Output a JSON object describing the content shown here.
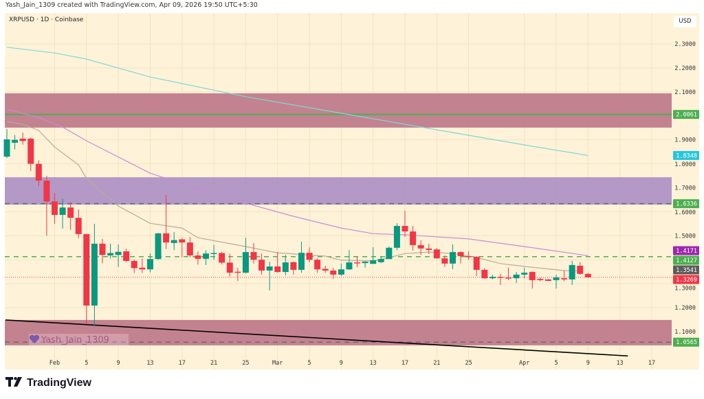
{
  "credit": "Yash_Jain_1309 created with TradingView.com, Apr 09, 2026 19:50 UTC+5:30",
  "symbol": "XRPUSD · 1D · Coinbase",
  "currency": "USD",
  "watermark": "Yash_Jain_1309",
  "footer": {
    "brand": "TradingView"
  },
  "colors": {
    "background": "#fef2d8",
    "up": "#089981",
    "down": "#f23645",
    "supply_zone": "#c07b8c",
    "purple_zone": "#b092c4",
    "ma_cyan": "#7dd8d8",
    "ma_purple": "#c98ad6",
    "ma_grey": "#b8ab9a",
    "trendline": "#000000"
  },
  "chart_data": {
    "type": "candlestick",
    "title": "XRPUSD · 1D · Coinbase",
    "ylim": [
      1.0,
      2.35
    ],
    "y_ticks": [
      "2.3000",
      "2.2000",
      "2.1000",
      "1.9000",
      "1.8000",
      "1.7000",
      "1.6000",
      "1.5000",
      "1.3000",
      "1.2000",
      "1.1000"
    ],
    "x_ticks": [
      {
        "date": "2026-02-01",
        "label": "Feb"
      },
      {
        "date": "2026-02-05",
        "label": "5"
      },
      {
        "date": "2026-02-09",
        "label": "9"
      },
      {
        "date": "2026-02-13",
        "label": "13"
      },
      {
        "date": "2026-02-17",
        "label": "17"
      },
      {
        "date": "2026-02-21",
        "label": "21"
      },
      {
        "date": "2026-02-25",
        "label": "25"
      },
      {
        "date": "2026-03-01",
        "label": "Mar"
      },
      {
        "date": "2026-03-05",
        "label": "5"
      },
      {
        "date": "2026-03-09",
        "label": "9"
      },
      {
        "date": "2026-03-13",
        "label": "13"
      },
      {
        "date": "2026-03-17",
        "label": "17"
      },
      {
        "date": "2026-03-21",
        "label": "21"
      },
      {
        "date": "2026-03-25",
        "label": "25"
      },
      {
        "date": "2026-04-01",
        "label": "Apr"
      },
      {
        "date": "2026-04-05",
        "label": "5"
      },
      {
        "date": "2026-04-09",
        "label": "9"
      },
      {
        "date": "2026-04-13",
        "label": "13"
      },
      {
        "date": "2026-04-17",
        "label": "17"
      }
    ],
    "grid": true,
    "candles": [
      {
        "d": "2026-01-26",
        "o": 1.83,
        "h": 1.945,
        "l": 1.825,
        "c": 1.902
      },
      {
        "d": "2026-01-27",
        "o": 1.888,
        "h": 1.92,
        "l": 1.86,
        "c": 1.9
      },
      {
        "d": "2026-01-28",
        "o": 1.905,
        "h": 1.93,
        "l": 1.88,
        "c": 1.895
      },
      {
        "d": "2026-01-29",
        "o": 1.905,
        "h": 1.91,
        "l": 1.77,
        "c": 1.8
      },
      {
        "d": "2026-01-30",
        "o": 1.8,
        "h": 1.815,
        "l": 1.707,
        "c": 1.73
      },
      {
        "d": "2026-01-31",
        "o": 1.73,
        "h": 1.75,
        "l": 1.5,
        "c": 1.643
      },
      {
        "d": "2026-02-01",
        "o": 1.643,
        "h": 1.678,
        "l": 1.55,
        "c": 1.587
      },
      {
        "d": "2026-02-02",
        "o": 1.587,
        "h": 1.655,
        "l": 1.53,
        "c": 1.618
      },
      {
        "d": "2026-02-03",
        "o": 1.618,
        "h": 1.64,
        "l": 1.524,
        "c": 1.575
      },
      {
        "d": "2026-02-04",
        "o": 1.575,
        "h": 1.61,
        "l": 1.49,
        "c": 1.507
      },
      {
        "d": "2026-02-05",
        "o": 1.507,
        "h": 1.507,
        "l": 1.134,
        "c": 1.209
      },
      {
        "d": "2026-02-06",
        "o": 1.209,
        "h": 1.55,
        "l": 1.12,
        "c": 1.467
      },
      {
        "d": "2026-02-07",
        "o": 1.467,
        "h": 1.487,
        "l": 1.385,
        "c": 1.42
      },
      {
        "d": "2026-02-08",
        "o": 1.418,
        "h": 1.467,
        "l": 1.405,
        "c": 1.428
      },
      {
        "d": "2026-02-09",
        "o": 1.42,
        "h": 1.464,
        "l": 1.37,
        "c": 1.433
      },
      {
        "d": "2026-02-10",
        "o": 1.435,
        "h": 1.446,
        "l": 1.39,
        "c": 1.395
      },
      {
        "d": "2026-02-11",
        "o": 1.395,
        "h": 1.4,
        "l": 1.345,
        "c": 1.365
      },
      {
        "d": "2026-02-12",
        "o": 1.367,
        "h": 1.405,
        "l": 1.345,
        "c": 1.36
      },
      {
        "d": "2026-02-13",
        "o": 1.36,
        "h": 1.426,
        "l": 1.347,
        "c": 1.403
      },
      {
        "d": "2026-02-14",
        "o": 1.403,
        "h": 1.512,
        "l": 1.4,
        "c": 1.51
      },
      {
        "d": "2026-02-15",
        "o": 1.51,
        "h": 1.67,
        "l": 1.445,
        "c": 1.472
      },
      {
        "d": "2026-02-16",
        "o": 1.47,
        "h": 1.515,
        "l": 1.44,
        "c": 1.482
      },
      {
        "d": "2026-02-17",
        "o": 1.485,
        "h": 1.49,
        "l": 1.41,
        "c": 1.472
      },
      {
        "d": "2026-02-18",
        "o": 1.472,
        "h": 1.495,
        "l": 1.41,
        "c": 1.418
      },
      {
        "d": "2026-02-19",
        "o": 1.418,
        "h": 1.435,
        "l": 1.38,
        "c": 1.404
      },
      {
        "d": "2026-02-20",
        "o": 1.404,
        "h": 1.44,
        "l": 1.378,
        "c": 1.426
      },
      {
        "d": "2026-02-21",
        "o": 1.425,
        "h": 1.462,
        "l": 1.4,
        "c": 1.428
      },
      {
        "d": "2026-02-22",
        "o": 1.428,
        "h": 1.433,
        "l": 1.38,
        "c": 1.388
      },
      {
        "d": "2026-02-23",
        "o": 1.388,
        "h": 1.425,
        "l": 1.33,
        "c": 1.346
      },
      {
        "d": "2026-02-24",
        "o": 1.35,
        "h": 1.366,
        "l": 1.312,
        "c": 1.346
      },
      {
        "d": "2026-02-25",
        "o": 1.346,
        "h": 1.492,
        "l": 1.343,
        "c": 1.432
      },
      {
        "d": "2026-02-26",
        "o": 1.432,
        "h": 1.47,
        "l": 1.384,
        "c": 1.4
      },
      {
        "d": "2026-02-27",
        "o": 1.4,
        "h": 1.426,
        "l": 1.338,
        "c": 1.355
      },
      {
        "d": "2026-02-28",
        "o": 1.355,
        "h": 1.392,
        "l": 1.272,
        "c": 1.372
      },
      {
        "d": "2026-03-01",
        "o": 1.372,
        "h": 1.432,
        "l": 1.346,
        "c": 1.349
      },
      {
        "d": "2026-03-02",
        "o": 1.349,
        "h": 1.42,
        "l": 1.335,
        "c": 1.389
      },
      {
        "d": "2026-03-03",
        "o": 1.39,
        "h": 1.392,
        "l": 1.338,
        "c": 1.358
      },
      {
        "d": "2026-03-04",
        "o": 1.358,
        "h": 1.475,
        "l": 1.346,
        "c": 1.429
      },
      {
        "d": "2026-03-05",
        "o": 1.429,
        "h": 1.452,
        "l": 1.389,
        "c": 1.4
      },
      {
        "d": "2026-03-06",
        "o": 1.4,
        "h": 1.406,
        "l": 1.346,
        "c": 1.36
      },
      {
        "d": "2026-03-07",
        "o": 1.362,
        "h": 1.375,
        "l": 1.346,
        "c": 1.355
      },
      {
        "d": "2026-03-08",
        "o": 1.355,
        "h": 1.366,
        "l": 1.32,
        "c": 1.338
      },
      {
        "d": "2026-03-09",
        "o": 1.338,
        "h": 1.384,
        "l": 1.332,
        "c": 1.36
      },
      {
        "d": "2026-03-10",
        "o": 1.36,
        "h": 1.44,
        "l": 1.358,
        "c": 1.389
      },
      {
        "d": "2026-03-11",
        "o": 1.389,
        "h": 1.412,
        "l": 1.369,
        "c": 1.386
      },
      {
        "d": "2026-03-12",
        "o": 1.386,
        "h": 1.395,
        "l": 1.367,
        "c": 1.392
      },
      {
        "d": "2026-03-13",
        "o": 1.383,
        "h": 1.452,
        "l": 1.383,
        "c": 1.398
      },
      {
        "d": "2026-03-14",
        "o": 1.39,
        "h": 1.415,
        "l": 1.386,
        "c": 1.403
      },
      {
        "d": "2026-03-15",
        "o": 1.403,
        "h": 1.456,
        "l": 1.403,
        "c": 1.45
      },
      {
        "d": "2026-03-16",
        "o": 1.45,
        "h": 1.552,
        "l": 1.44,
        "c": 1.541
      },
      {
        "d": "2026-03-17",
        "o": 1.541,
        "h": 1.604,
        "l": 1.495,
        "c": 1.518
      },
      {
        "d": "2026-03-18",
        "o": 1.518,
        "h": 1.541,
        "l": 1.438,
        "c": 1.461
      },
      {
        "d": "2026-03-19",
        "o": 1.461,
        "h": 1.481,
        "l": 1.42,
        "c": 1.447
      },
      {
        "d": "2026-03-20",
        "o": 1.447,
        "h": 1.467,
        "l": 1.424,
        "c": 1.441
      },
      {
        "d": "2026-03-21",
        "o": 1.443,
        "h": 1.449,
        "l": 1.404,
        "c": 1.406
      },
      {
        "d": "2026-03-22",
        "o": 1.406,
        "h": 1.418,
        "l": 1.37,
        "c": 1.384
      },
      {
        "d": "2026-03-23",
        "o": 1.384,
        "h": 1.464,
        "l": 1.361,
        "c": 1.432
      },
      {
        "d": "2026-03-24",
        "o": 1.432,
        "h": 1.435,
        "l": 1.384,
        "c": 1.415
      },
      {
        "d": "2026-03-25",
        "o": 1.415,
        "h": 1.435,
        "l": 1.4,
        "c": 1.412
      },
      {
        "d": "2026-03-26",
        "o": 1.412,
        "h": 1.415,
        "l": 1.332,
        "c": 1.358
      },
      {
        "d": "2026-03-27",
        "o": 1.358,
        "h": 1.366,
        "l": 1.32,
        "c": 1.323
      },
      {
        "d": "2026-03-28",
        "o": 1.323,
        "h": 1.338,
        "l": 1.318,
        "c": 1.329
      },
      {
        "d": "2026-03-29",
        "o": 1.329,
        "h": 1.341,
        "l": 1.295,
        "c": 1.326
      },
      {
        "d": "2026-03-30",
        "o": 1.326,
        "h": 1.367,
        "l": 1.315,
        "c": 1.323
      },
      {
        "d": "2026-03-31",
        "o": 1.323,
        "h": 1.349,
        "l": 1.303,
        "c": 1.338
      },
      {
        "d": "2026-04-01",
        "o": 1.338,
        "h": 1.366,
        "l": 1.323,
        "c": 1.346
      },
      {
        "d": "2026-04-02",
        "o": 1.349,
        "h": 1.352,
        "l": 1.28,
        "c": 1.315
      },
      {
        "d": "2026-04-03",
        "o": 1.32,
        "h": 1.326,
        "l": 1.31,
        "c": 1.315
      },
      {
        "d": "2026-04-04",
        "o": 1.318,
        "h": 1.32,
        "l": 1.312,
        "c": 1.312
      },
      {
        "d": "2026-04-05",
        "o": 1.315,
        "h": 1.338,
        "l": 1.28,
        "c": 1.326
      },
      {
        "d": "2026-04-06",
        "o": 1.323,
        "h": 1.355,
        "l": 1.31,
        "c": 1.318
      },
      {
        "d": "2026-04-07",
        "o": 1.318,
        "h": 1.395,
        "l": 1.295,
        "c": 1.378
      },
      {
        "d": "2026-04-08",
        "o": 1.375,
        "h": 1.39,
        "l": 1.338,
        "c": 1.341
      },
      {
        "d": "2026-04-09",
        "o": 1.341,
        "h": 1.345,
        "l": 1.325,
        "c": 1.3269
      }
    ],
    "moving_averages": [
      {
        "color": "#7dd8d8",
        "points": [
          [
            "2026-01-26",
            2.286
          ],
          [
            "2026-02-01",
            2.262
          ],
          [
            "2026-02-05",
            2.237
          ],
          [
            "2026-02-13",
            2.162
          ],
          [
            "2026-02-25",
            2.08
          ],
          [
            "2026-03-09",
            2.011
          ],
          [
            "2026-03-21",
            1.942
          ],
          [
            "2026-04-01",
            1.879
          ],
          [
            "2026-04-09",
            1.8348
          ]
        ]
      },
      {
        "color": "#c98ad6",
        "points": [
          [
            "2026-01-26",
            2.028
          ],
          [
            "2026-01-30",
            1.993
          ],
          [
            "2026-02-02",
            1.953
          ],
          [
            "2026-02-05",
            1.896
          ],
          [
            "2026-02-13",
            1.761
          ],
          [
            "2026-02-19",
            1.696
          ],
          [
            "2026-02-25",
            1.636
          ],
          [
            "2026-03-03",
            1.581
          ],
          [
            "2026-03-09",
            1.532
          ],
          [
            "2026-03-13",
            1.509
          ],
          [
            "2026-03-17",
            1.504
          ],
          [
            "2026-03-25",
            1.487
          ],
          [
            "2026-04-01",
            1.455
          ],
          [
            "2026-04-09",
            1.4171
          ]
        ]
      },
      {
        "color": "#b8ab9a",
        "points": [
          [
            "2026-01-26",
            1.976
          ],
          [
            "2026-01-28",
            1.965
          ],
          [
            "2026-01-30",
            1.939
          ],
          [
            "2026-02-01",
            1.87
          ],
          [
            "2026-02-04",
            1.796
          ],
          [
            "2026-02-05",
            1.739
          ],
          [
            "2026-02-09",
            1.624
          ],
          [
            "2026-02-13",
            1.552
          ],
          [
            "2026-02-17",
            1.532
          ],
          [
            "2026-02-19",
            1.492
          ],
          [
            "2026-02-24",
            1.461
          ],
          [
            "2026-03-01",
            1.429
          ],
          [
            "2026-03-07",
            1.415
          ],
          [
            "2026-03-09",
            1.398
          ],
          [
            "2026-03-13",
            1.395
          ],
          [
            "2026-03-15",
            1.409
          ],
          [
            "2026-03-17",
            1.426
          ],
          [
            "2026-03-20",
            1.432
          ],
          [
            "2026-03-23",
            1.426
          ],
          [
            "2026-03-26",
            1.409
          ],
          [
            "2026-03-29",
            1.384
          ],
          [
            "2026-04-01",
            1.372
          ],
          [
            "2026-04-06",
            1.355
          ],
          [
            "2026-04-08",
            1.3541
          ]
        ]
      }
    ],
    "zones": [
      {
        "name": "upper-zone",
        "from": 1.951,
        "to": 2.094,
        "color": "#c07b8c"
      },
      {
        "name": "purple-zone",
        "from": 1.63,
        "to": 1.744,
        "color": "#b092c4"
      },
      {
        "name": "lower-zone",
        "from": 1.043,
        "to": 1.149,
        "color": "#c07b8c"
      }
    ],
    "horizontal_lines": [
      {
        "price": 2.0061,
        "color": "#4caf50",
        "style": "solid"
      },
      {
        "price": 1.6336,
        "color": "#5d6b7a",
        "style": "dashed"
      },
      {
        "price": 1.4127,
        "color": "#4caf50",
        "style": "dashed"
      },
      {
        "price": 1.3269,
        "color": "#f23645",
        "style": "dotted"
      },
      {
        "price": 1.0565,
        "color": "#6b6b6b",
        "style": "dashed"
      }
    ],
    "trendline": [
      [
        "2026-01-26",
        1.149
      ],
      [
        "2026-04-14",
        0.999
      ]
    ],
    "price_tags": [
      {
        "label": "2.0061",
        "price": 2.0061,
        "color": "#4caf50"
      },
      {
        "label": "1.8348",
        "price": 1.8348,
        "color": "#26c6da"
      },
      {
        "label": "1.6336",
        "price": 1.6336,
        "color": "#4caf50"
      },
      {
        "label": "1.4171",
        "price": 1.4171,
        "color": "#9c27b0"
      },
      {
        "label": "1.4127",
        "price": 1.4127,
        "color": "#4caf50"
      },
      {
        "label": "1.3541",
        "price": 1.3541,
        "color": "#5d5d5d"
      },
      {
        "label": "1.3269",
        "price": 1.3269,
        "color": "#f23645"
      },
      {
        "label": "1.0565",
        "price": 1.0565,
        "color": "#4caf50"
      }
    ]
  }
}
